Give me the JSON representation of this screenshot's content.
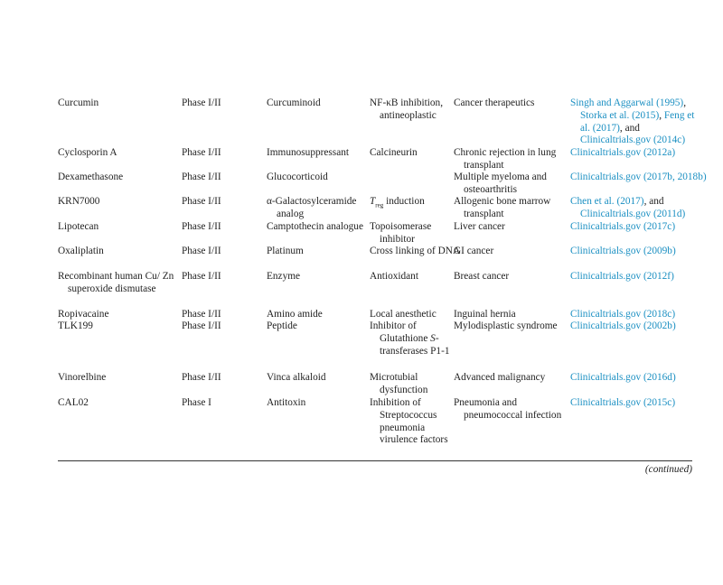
{
  "rows": [
    {
      "drug": "Curcumin",
      "phase": "Phase I/II",
      "class": "Curcuminoid",
      "activity": [
        {
          "t": "NF-κB inhibition, antineoplastic"
        }
      ],
      "indication": "Cancer therapeutics",
      "refs": [
        {
          "t": "Singh and Aggarwal (1995)",
          "link": true
        },
        {
          "t": ", "
        },
        {
          "t": "Storka et al. (2015)",
          "link": true
        },
        {
          "t": ", "
        },
        {
          "t": "Feng et al. (2017)",
          "link": true
        },
        {
          "t": ", and "
        },
        {
          "t": "Clinicaltrials.gov (2014c)",
          "link": true
        }
      ]
    },
    {
      "drug": "Cyclosporin A",
      "phase": "Phase I/II",
      "class": "Immunosuppressant",
      "activity": [
        {
          "t": "Calcineurin"
        }
      ],
      "indication": "Chronic rejection in lung transplant",
      "refs": [
        {
          "t": "Clinicaltrials.gov (2012a)",
          "link": true
        }
      ]
    },
    {
      "drug": "Dexamethasone",
      "phase": "Phase I/II",
      "class": "Glucocorticoid",
      "activity": [],
      "indication": "Multiple myeloma and osteoarthritis",
      "refs": [
        {
          "t": "Clinicaltrials.gov (2017b, 2018b)",
          "link": true
        }
      ]
    },
    {
      "drug": "KRN7000",
      "phase": "Phase I/II",
      "class": "α-Galactosylceramide analog",
      "activity": [
        {
          "t": "T",
          "i": true
        },
        {
          "t": "reg",
          "sub": true
        },
        {
          "t": " induction"
        }
      ],
      "indication": "Allogenic bone marrow transplant",
      "refs": [
        {
          "t": "Chen et al. (2017)",
          "link": true
        },
        {
          "t": ", and "
        },
        {
          "t": "Clinicaltrials.gov (2011d)",
          "link": true
        }
      ]
    },
    {
      "drug": "Lipotecan",
      "phase": "Phase I/II",
      "class": "Camptothecin analogue",
      "activity": [
        {
          "t": "Topoisomerase inhibitor"
        }
      ],
      "indication": "Liver cancer",
      "refs": [
        {
          "t": "Clinicaltrials.gov (2017c)",
          "link": true
        }
      ]
    },
    {
      "drug": "Oxaliplatin",
      "phase": "Phase I/II",
      "class": "Platinum",
      "activity": [
        {
          "t": "Cross linking of DNA"
        }
      ],
      "indication": "GI cancer",
      "refs": [
        {
          "t": "Clinicaltrials.gov (2009b)",
          "link": true
        }
      ]
    },
    {
      "drug": "Recombinant human Cu/ Zn superoxide dismutase",
      "phase": "Phase I/II",
      "class": "Enzyme",
      "activity": [
        {
          "t": "Antioxidant"
        }
      ],
      "indication": "Breast cancer",
      "refs": [
        {
          "t": "Clinicaltrials.gov (2012f)",
          "link": true
        }
      ]
    },
    {
      "drug": "Ropivacaine",
      "phase": "Phase I/II",
      "class": "Amino amide",
      "activity": [
        {
          "t": "Local anesthetic"
        }
      ],
      "indication": "Inguinal hernia",
      "refs": [
        {
          "t": "Clinicaltrials.gov (2018c)",
          "link": true
        }
      ]
    },
    {
      "drug": "TLK199",
      "phase": "Phase I/II",
      "class": "Peptide",
      "activity": [
        {
          "t": "Inhibitor of Glutathione "
        },
        {
          "t": "S",
          "i": true
        },
        {
          "t": "-transferases P1-1"
        }
      ],
      "indication": "Mylodisplastic syndrome",
      "refs": [
        {
          "t": "Clinicaltrials.gov (2002b)",
          "link": true
        }
      ]
    },
    {
      "drug": "Vinorelbine",
      "phase": "Phase I/II",
      "class": "Vinca alkaloid",
      "activity": [
        {
          "t": "Microtubial dysfunction"
        }
      ],
      "indication": "Advanced malignancy",
      "refs": [
        {
          "t": "Clinicaltrials.gov (2016d)",
          "link": true
        }
      ]
    },
    {
      "drug": "CAL02",
      "phase": "Phase I",
      "class": "Antitoxin",
      "activity": [
        {
          "t": "Inhibition of Streptococcus pneumonia virulence factors"
        }
      ],
      "indication": "Pneumonia and pneumococcal infection",
      "refs": [
        {
          "t": "Clinicaltrials.gov (2015c)",
          "link": true
        }
      ]
    }
  ],
  "footer": {
    "continued": "(continued)"
  }
}
